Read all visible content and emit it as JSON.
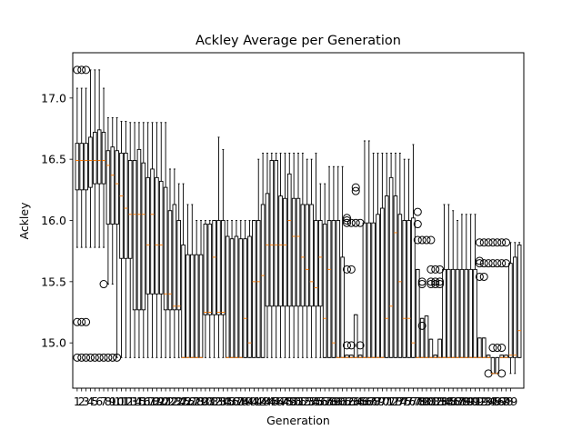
{
  "chart_data": {
    "type": "boxplot",
    "title": "Ackley Average per Generation",
    "xlabel": "Generation",
    "ylabel": "Ackley",
    "ylim": [
      14.63,
      17.37
    ],
    "yticks": [
      "15.0",
      "15.5",
      "16.0",
      "16.5",
      "17.0"
    ],
    "ytick_values": [
      15.0,
      15.5,
      16.0,
      16.5,
      17.0
    ],
    "grid": false,
    "legend": "none",
    "colors": {
      "box": "#000000",
      "median": "#ff7f0e",
      "flier": "#000000"
    },
    "categories": [
      "1",
      "2",
      "3",
      "4",
      "5",
      "6",
      "7",
      "8",
      "9",
      "10",
      "11",
      "12",
      "13",
      "14",
      "15",
      "16",
      "17",
      "18",
      "19",
      "20",
      "21",
      "22",
      "23",
      "24",
      "25",
      "26",
      "27",
      "28",
      "29",
      "30",
      "31",
      "32",
      "33",
      "34",
      "35",
      "36",
      "37",
      "38",
      "39",
      "40",
      "41",
      "42",
      "43",
      "44",
      "45",
      "46",
      "47",
      "48",
      "49",
      "50",
      "51",
      "52",
      "53",
      "54",
      "55",
      "56",
      "57",
      "58",
      "59",
      "60",
      "61",
      "62",
      "63",
      "64",
      "65",
      "66",
      "67",
      "68",
      "69",
      "70",
      "71",
      "72",
      "73",
      "74",
      "75",
      "76",
      "77",
      "78",
      "79",
      "80",
      "81",
      "82",
      "83",
      "84",
      "85",
      "86",
      "87",
      "88",
      "89",
      "90",
      "91",
      "92",
      "93",
      "94",
      "95",
      "96",
      "97",
      "98",
      "99"
    ],
    "boxes": [
      {
        "whislo": 15.78,
        "q1": 16.25,
        "med": 16.49,
        "q3": 16.63,
        "whishi": 17.08,
        "fliers": [
          17.23,
          15.17,
          14.88
        ]
      },
      {
        "whislo": 15.78,
        "q1": 16.25,
        "med": 16.49,
        "q3": 16.63,
        "whishi": 17.08,
        "fliers": [
          17.23,
          15.17,
          14.88
        ]
      },
      {
        "whislo": 15.78,
        "q1": 16.25,
        "med": 16.49,
        "q3": 16.63,
        "whishi": 17.08,
        "fliers": [
          17.23,
          15.17,
          14.88
        ]
      },
      {
        "whislo": 15.78,
        "q1": 16.27,
        "med": 16.49,
        "q3": 16.68,
        "whishi": 17.23,
        "fliers": [
          14.88
        ]
      },
      {
        "whislo": 15.78,
        "q1": 16.3,
        "med": 16.49,
        "q3": 16.72,
        "whishi": 17.23,
        "fliers": [
          14.88
        ]
      },
      {
        "whislo": 15.78,
        "q1": 16.3,
        "med": 16.49,
        "q3": 16.74,
        "whishi": 17.23,
        "fliers": [
          14.88
        ]
      },
      {
        "whislo": 15.78,
        "q1": 16.3,
        "med": 16.49,
        "q3": 16.72,
        "whishi": 17.08,
        "fliers": [
          15.48,
          14.88
        ]
      },
      {
        "whislo": 15.48,
        "q1": 15.97,
        "med": 16.45,
        "q3": 16.57,
        "whishi": 16.84,
        "fliers": [
          14.88
        ]
      },
      {
        "whislo": 15.48,
        "q1": 15.97,
        "med": 16.37,
        "q3": 16.6,
        "whishi": 16.84,
        "fliers": [
          14.88
        ]
      },
      {
        "whislo": 14.88,
        "q1": 15.97,
        "med": 16.3,
        "q3": 16.57,
        "whishi": 16.84,
        "fliers": [
          14.88
        ]
      },
      {
        "whislo": 14.88,
        "q1": 15.69,
        "med": 16.2,
        "q3": 16.55,
        "whishi": 16.81,
        "fliers": []
      },
      {
        "whislo": 14.88,
        "q1": 15.69,
        "med": 16.1,
        "q3": 16.55,
        "whishi": 16.81,
        "fliers": []
      },
      {
        "whislo": 14.88,
        "q1": 15.69,
        "med": 16.05,
        "q3": 16.49,
        "whishi": 16.8,
        "fliers": []
      },
      {
        "whislo": 14.88,
        "q1": 15.27,
        "med": 16.05,
        "q3": 16.49,
        "whishi": 16.8,
        "fliers": []
      },
      {
        "whislo": 14.88,
        "q1": 15.27,
        "med": 16.05,
        "q3": 16.58,
        "whishi": 16.8,
        "fliers": []
      },
      {
        "whislo": 14.88,
        "q1": 15.27,
        "med": 16.05,
        "q3": 16.47,
        "whishi": 16.8,
        "fliers": []
      },
      {
        "whislo": 14.88,
        "q1": 15.4,
        "med": 15.8,
        "q3": 16.35,
        "whishi": 16.8,
        "fliers": []
      },
      {
        "whislo": 14.88,
        "q1": 15.4,
        "med": 16.05,
        "q3": 16.42,
        "whishi": 16.8,
        "fliers": []
      },
      {
        "whislo": 14.88,
        "q1": 15.4,
        "med": 15.8,
        "q3": 16.35,
        "whishi": 16.8,
        "fliers": []
      },
      {
        "whislo": 14.88,
        "q1": 15.4,
        "med": 15.8,
        "q3": 16.32,
        "whishi": 16.8,
        "fliers": []
      },
      {
        "whislo": 14.88,
        "q1": 15.27,
        "med": 15.4,
        "q3": 16.27,
        "whishi": 16.8,
        "fliers": []
      },
      {
        "whislo": 14.88,
        "q1": 15.27,
        "med": 15.4,
        "q3": 16.08,
        "whishi": 16.42,
        "fliers": []
      },
      {
        "whislo": 14.88,
        "q1": 15.27,
        "med": 15.3,
        "q3": 16.13,
        "whishi": 16.42,
        "fliers": []
      },
      {
        "whislo": 14.88,
        "q1": 15.27,
        "med": 15.3,
        "q3": 16.0,
        "whishi": 16.3,
        "fliers": []
      },
      {
        "whislo": 14.88,
        "q1": 14.88,
        "med": 14.88,
        "q3": 15.8,
        "whishi": 16.3,
        "fliers": []
      },
      {
        "whislo": 14.88,
        "q1": 14.88,
        "med": 14.88,
        "q3": 15.72,
        "whishi": 16.13,
        "fliers": []
      },
      {
        "whislo": 14.88,
        "q1": 14.88,
        "med": 14.88,
        "q3": 15.72,
        "whishi": 16.13,
        "fliers": []
      },
      {
        "whislo": 14.88,
        "q1": 14.88,
        "med": 14.88,
        "q3": 15.72,
        "whishi": 16.0,
        "fliers": []
      },
      {
        "whislo": 14.88,
        "q1": 14.88,
        "med": 14.88,
        "q3": 15.72,
        "whishi": 16.0,
        "fliers": []
      },
      {
        "whislo": 14.88,
        "q1": 15.23,
        "med": 15.25,
        "q3": 15.97,
        "whishi": 16.0,
        "fliers": []
      },
      {
        "whislo": 14.88,
        "q1": 15.23,
        "med": 15.25,
        "q3": 15.97,
        "whishi": 16.0,
        "fliers": []
      },
      {
        "whislo": 14.88,
        "q1": 15.23,
        "med": 15.7,
        "q3": 16.0,
        "whishi": 16.0,
        "fliers": []
      },
      {
        "whislo": 14.88,
        "q1": 15.23,
        "med": 15.25,
        "q3": 16.0,
        "whishi": 16.68,
        "fliers": []
      },
      {
        "whislo": 14.88,
        "q1": 15.23,
        "med": 15.25,
        "q3": 16.0,
        "whishi": 16.58,
        "fliers": []
      },
      {
        "whislo": 14.88,
        "q1": 14.88,
        "med": 14.88,
        "q3": 15.87,
        "whishi": 16.0,
        "fliers": []
      },
      {
        "whislo": 14.88,
        "q1": 14.88,
        "med": 14.88,
        "q3": 15.85,
        "whishi": 16.0,
        "fliers": []
      },
      {
        "whislo": 14.88,
        "q1": 14.88,
        "med": 14.88,
        "q3": 15.87,
        "whishi": 16.0,
        "fliers": []
      },
      {
        "whislo": 14.88,
        "q1": 14.88,
        "med": 14.88,
        "q3": 15.85,
        "whishi": 16.0,
        "fliers": []
      },
      {
        "whislo": 14.88,
        "q1": 14.88,
        "med": 15.2,
        "q3": 15.85,
        "whishi": 16.0,
        "fliers": []
      },
      {
        "whislo": 14.88,
        "q1": 14.88,
        "med": 15.0,
        "q3": 15.87,
        "whishi": 16.0,
        "fliers": []
      },
      {
        "whislo": 14.88,
        "q1": 14.88,
        "med": 15.5,
        "q3": 16.0,
        "whishi": 16.0,
        "fliers": []
      },
      {
        "whislo": 14.88,
        "q1": 14.88,
        "med": 15.5,
        "q3": 16.0,
        "whishi": 16.5,
        "fliers": []
      },
      {
        "whislo": 14.88,
        "q1": 14.88,
        "med": 15.55,
        "q3": 16.13,
        "whishi": 16.55,
        "fliers": []
      },
      {
        "whislo": 14.88,
        "q1": 15.3,
        "med": 15.8,
        "q3": 16.22,
        "whishi": 16.55,
        "fliers": []
      },
      {
        "whislo": 14.88,
        "q1": 15.3,
        "med": 15.8,
        "q3": 16.49,
        "whishi": 16.55,
        "fliers": []
      },
      {
        "whislo": 14.88,
        "q1": 15.3,
        "med": 15.8,
        "q3": 16.49,
        "whishi": 16.55,
        "fliers": []
      },
      {
        "whislo": 14.88,
        "q1": 15.3,
        "med": 15.8,
        "q3": 16.2,
        "whishi": 16.55,
        "fliers": []
      },
      {
        "whislo": 14.88,
        "q1": 15.3,
        "med": 15.8,
        "q3": 16.18,
        "whishi": 16.55,
        "fliers": []
      },
      {
        "whislo": 14.88,
        "q1": 15.3,
        "med": 16.0,
        "q3": 16.38,
        "whishi": 16.55,
        "fliers": []
      },
      {
        "whislo": 14.88,
        "q1": 15.3,
        "med": 15.87,
        "q3": 16.18,
        "whishi": 16.55,
        "fliers": []
      },
      {
        "whislo": 14.88,
        "q1": 15.3,
        "med": 15.87,
        "q3": 16.18,
        "whishi": 16.55,
        "fliers": []
      },
      {
        "whislo": 14.88,
        "q1": 15.3,
        "med": 15.7,
        "q3": 16.13,
        "whishi": 16.55,
        "fliers": []
      },
      {
        "whislo": 14.88,
        "q1": 15.3,
        "med": 15.6,
        "q3": 16.13,
        "whishi": 16.5,
        "fliers": []
      },
      {
        "whislo": 14.88,
        "q1": 15.3,
        "med": 15.5,
        "q3": 16.13,
        "whishi": 16.5,
        "fliers": []
      },
      {
        "whislo": 14.88,
        "q1": 15.3,
        "med": 15.45,
        "q3": 16.0,
        "whishi": 16.55,
        "fliers": []
      },
      {
        "whislo": 14.88,
        "q1": 15.3,
        "med": 15.7,
        "q3": 16.0,
        "whishi": 16.3,
        "fliers": []
      },
      {
        "whislo": 14.88,
        "q1": 14.88,
        "med": 15.2,
        "q3": 15.97,
        "whishi": 16.3,
        "fliers": []
      },
      {
        "whislo": 14.88,
        "q1": 14.88,
        "med": 15.6,
        "q3": 16.0,
        "whishi": 16.44,
        "fliers": []
      },
      {
        "whislo": 14.88,
        "q1": 14.88,
        "med": 15.0,
        "q3": 16.0,
        "whishi": 16.44,
        "fliers": []
      },
      {
        "whislo": 14.88,
        "q1": 14.88,
        "med": 14.88,
        "q3": 16.0,
        "whishi": 16.44,
        "fliers": []
      },
      {
        "whislo": 14.88,
        "q1": 14.88,
        "med": 14.88,
        "q3": 15.7,
        "whishi": 16.44,
        "fliers": []
      },
      {
        "whislo": 14.88,
        "q1": 14.88,
        "med": 14.88,
        "q3": 14.9,
        "whishi": 14.9,
        "fliers": [
          16.02,
          16.0,
          15.98,
          15.6,
          14.98
        ]
      },
      {
        "whislo": 14.88,
        "q1": 14.88,
        "med": 14.88,
        "q3": 14.9,
        "whishi": 14.9,
        "fliers": [
          15.98,
          15.6,
          14.98
        ]
      },
      {
        "whislo": 14.88,
        "q1": 14.88,
        "med": 14.88,
        "q3": 15.23,
        "whishi": 15.23,
        "fliers": [
          16.27,
          16.24,
          15.98
        ]
      },
      {
        "whislo": 14.88,
        "q1": 14.88,
        "med": 14.88,
        "q3": 14.9,
        "whishi": 14.9,
        "fliers": [
          15.98,
          14.98
        ]
      },
      {
        "whislo": 14.88,
        "q1": 14.88,
        "med": 14.88,
        "q3": 15.98,
        "whishi": 16.65,
        "fliers": []
      },
      {
        "whislo": 14.88,
        "q1": 14.88,
        "med": 14.88,
        "q3": 15.98,
        "whishi": 16.65,
        "fliers": []
      },
      {
        "whislo": 14.88,
        "q1": 14.88,
        "med": 14.88,
        "q3": 15.98,
        "whishi": 16.55,
        "fliers": []
      },
      {
        "whislo": 14.88,
        "q1": 14.88,
        "med": 14.88,
        "q3": 16.05,
        "whishi": 16.55,
        "fliers": []
      },
      {
        "whislo": 14.88,
        "q1": 14.88,
        "med": 14.88,
        "q3": 16.1,
        "whishi": 16.55,
        "fliers": []
      },
      {
        "whislo": 14.88,
        "q1": 14.88,
        "med": 15.2,
        "q3": 16.2,
        "whishi": 16.55,
        "fliers": []
      },
      {
        "whislo": 14.88,
        "q1": 14.88,
        "med": 15.3,
        "q3": 16.35,
        "whishi": 16.55,
        "fliers": []
      },
      {
        "whislo": 14.88,
        "q1": 14.88,
        "med": 15.9,
        "q3": 16.2,
        "whishi": 16.55,
        "fliers": []
      },
      {
        "whislo": 14.88,
        "q1": 14.88,
        "med": 15.5,
        "q3": 16.05,
        "whishi": 16.55,
        "fliers": []
      },
      {
        "whislo": 14.88,
        "q1": 14.88,
        "med": 15.2,
        "q3": 16.0,
        "whishi": 16.5,
        "fliers": []
      },
      {
        "whislo": 14.88,
        "q1": 14.88,
        "med": 15.2,
        "q3": 16.0,
        "whishi": 16.5,
        "fliers": []
      },
      {
        "whislo": 14.88,
        "q1": 14.88,
        "med": 15.0,
        "q3": 16.02,
        "whishi": 16.62,
        "fliers": []
      },
      {
        "whislo": 14.88,
        "q1": 14.88,
        "med": 14.88,
        "q3": 15.6,
        "whishi": 15.6,
        "fliers": [
          16.07,
          15.97,
          15.84
        ]
      },
      {
        "whislo": 14.88,
        "q1": 14.88,
        "med": 14.88,
        "q3": 15.2,
        "whishi": 15.2,
        "fliers": [
          15.84,
          15.5,
          15.48,
          15.14
        ]
      },
      {
        "whislo": 14.88,
        "q1": 14.88,
        "med": 14.88,
        "q3": 15.22,
        "whishi": 15.22,
        "fliers": [
          15.84
        ]
      },
      {
        "whislo": 14.88,
        "q1": 14.88,
        "med": 14.88,
        "q3": 15.03,
        "whishi": 15.03,
        "fliers": [
          15.84,
          15.6,
          15.5,
          15.48
        ]
      },
      {
        "whislo": 14.88,
        "q1": 14.88,
        "med": 14.88,
        "q3": 14.9,
        "whishi": 14.9,
        "fliers": [
          15.6,
          15.5,
          15.48
        ]
      },
      {
        "whislo": 14.88,
        "q1": 14.88,
        "med": 14.88,
        "q3": 15.03,
        "whishi": 15.03,
        "fliers": [
          15.6,
          15.5,
          15.48
        ]
      },
      {
        "whislo": 14.88,
        "q1": 14.88,
        "med": 14.88,
        "q3": 15.6,
        "whishi": 16.13,
        "fliers": []
      },
      {
        "whislo": 14.88,
        "q1": 14.88,
        "med": 14.88,
        "q3": 15.6,
        "whishi": 16.13,
        "fliers": []
      },
      {
        "whislo": 14.88,
        "q1": 14.88,
        "med": 14.88,
        "q3": 15.6,
        "whishi": 16.08,
        "fliers": []
      },
      {
        "whislo": 14.88,
        "q1": 14.88,
        "med": 14.88,
        "q3": 15.6,
        "whishi": 16.0,
        "fliers": []
      },
      {
        "whislo": 14.88,
        "q1": 14.88,
        "med": 14.88,
        "q3": 15.6,
        "whishi": 16.05,
        "fliers": []
      },
      {
        "whislo": 14.88,
        "q1": 14.88,
        "med": 14.88,
        "q3": 15.6,
        "whishi": 16.05,
        "fliers": []
      },
      {
        "whislo": 14.88,
        "q1": 14.88,
        "med": 14.88,
        "q3": 15.6,
        "whishi": 16.05,
        "fliers": []
      },
      {
        "whislo": 14.88,
        "q1": 14.88,
        "med": 14.88,
        "q3": 15.6,
        "whishi": 16.05,
        "fliers": []
      },
      {
        "whislo": 14.88,
        "q1": 14.88,
        "med": 14.88,
        "q3": 15.04,
        "whishi": 15.04,
        "fliers": [
          15.82,
          15.67,
          15.65,
          15.54
        ]
      },
      {
        "whislo": 14.88,
        "q1": 14.88,
        "med": 14.88,
        "q3": 15.04,
        "whishi": 15.04,
        "fliers": [
          15.82,
          15.65,
          15.54
        ]
      },
      {
        "whislo": 14.88,
        "q1": 14.88,
        "med": 14.88,
        "q3": 14.9,
        "whishi": 14.9,
        "fliers": [
          15.82,
          15.65,
          14.75
        ]
      },
      {
        "whislo": 14.75,
        "q1": 14.75,
        "med": 14.75,
        "q3": 14.88,
        "whishi": 14.88,
        "fliers": [
          15.82,
          15.65,
          14.96
        ]
      },
      {
        "whislo": 14.75,
        "q1": 14.75,
        "med": 14.75,
        "q3": 14.88,
        "whishi": 14.88,
        "fliers": [
          15.82,
          15.65,
          14.96
        ]
      },
      {
        "whislo": 14.88,
        "q1": 14.88,
        "med": 14.88,
        "q3": 14.9,
        "whishi": 14.9,
        "fliers": [
          15.82,
          15.65,
          14.96,
          14.75
        ]
      },
      {
        "whislo": 14.88,
        "q1": 14.88,
        "med": 14.88,
        "q3": 14.9,
        "whishi": 14.9,
        "fliers": [
          15.82,
          15.65
        ]
      },
      {
        "whislo": 14.75,
        "q1": 14.88,
        "med": 14.9,
        "q3": 15.65,
        "whishi": 15.82,
        "fliers": []
      },
      {
        "whislo": 14.75,
        "q1": 14.88,
        "med": 14.9,
        "q3": 15.7,
        "whishi": 15.82,
        "fliers": []
      },
      {
        "whislo": 14.88,
        "q1": 14.88,
        "med": 15.1,
        "q3": 15.8,
        "whishi": 15.82,
        "fliers": []
      }
    ]
  }
}
